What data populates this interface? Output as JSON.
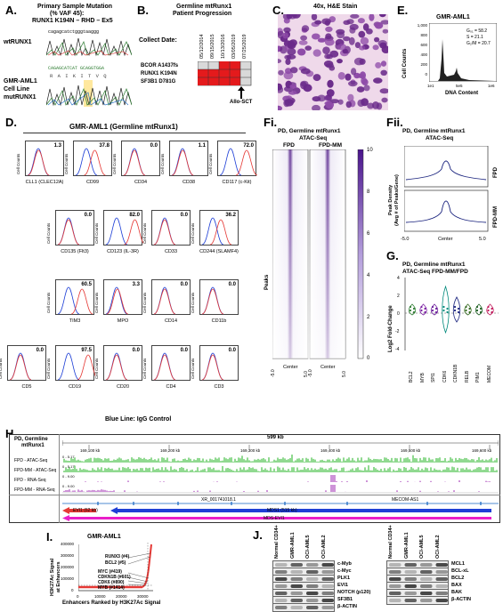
{
  "panelA": {
    "letter": "A.",
    "title1": "Primary Sample Mutation",
    "title2": "(% VAF 45):",
    "title3": "RUNX1 K194N – RHD – Ex5",
    "wt_label": "wtRUNX1",
    "wt_seq": "cagagcatctgggtaaggg",
    "mut_label1": "GMR-AML1",
    "mut_label2": "Cell Line",
    "mut_label3": "mutRUNX1",
    "mut_seq": "CAGAGCATCAT GCAGGTGGA",
    "aa_seq": "R  A  I  K  I  T  V  Q"
  },
  "panelB": {
    "letter": "B.",
    "title1": "Germline mtRunx1",
    "title2": "Patient Progression",
    "collect_label": "Collect Date:",
    "dates": [
      "05/12/2014",
      "09/15/2015",
      "10/13/2016",
      "03/05/2019",
      "07/25/2019"
    ],
    "rows": [
      "BCOR A1437fs",
      "RUNX1 K194N",
      "SF3B1 D781G"
    ],
    "allo_label": "Allo-SCT"
  },
  "panelC": {
    "letter": "C.",
    "title": "40x, H&E Stain"
  },
  "panelE": {
    "letter": "E.",
    "title": "GMR-AML1",
    "ylabel": "Cell Counts",
    "xlabel": "DNA Content",
    "stats": [
      "G₀₁ = 58.2",
      "S = 21.1",
      "G₂/M = 20.7"
    ],
    "yticks": [
      "1,000",
      "800",
      "600",
      "400",
      "200",
      "0"
    ],
    "xticks": [
      "1e1",
      "5e5",
      "1e6"
    ]
  },
  "panelD": {
    "letter": "D.",
    "title": "GMR-AML1 (Germline mtRunx1)",
    "footer": "Blue Line: IgG Control",
    "ylabel": "Cell Counts",
    "markers": [
      {
        "name": "CLL1 (CLEC12A)",
        "value": "1.3"
      },
      {
        "name": "CD99",
        "value": "37.8"
      },
      {
        "name": "CD34",
        "value": "0.0"
      },
      {
        "name": "CD38",
        "value": "1.1"
      },
      {
        "name": "CD117 (c-Kit)",
        "value": "72.0"
      },
      {
        "name": "CD135 (Flt3)",
        "value": "0.0"
      },
      {
        "name": "CD123 (IL-3R)",
        "value": "82.0"
      },
      {
        "name": "CD33",
        "value": "0.0"
      },
      {
        "name": "CD244 (SLAMF4)",
        "value": "36.2"
      },
      {
        "name": "TIM3",
        "value": "60.5"
      },
      {
        "name": "MPO",
        "value": "3.3"
      },
      {
        "name": "CD14",
        "value": "0.0"
      },
      {
        "name": "CD11b",
        "value": "0.0"
      },
      {
        "name": "CD5",
        "value": "0.0"
      },
      {
        "name": "CD19",
        "value": "97.5"
      },
      {
        "name": "CD20",
        "value": "0.0"
      },
      {
        "name": "CD4",
        "value": "0.0"
      },
      {
        "name": "CD3",
        "value": "0.0"
      }
    ]
  },
  "panelFi": {
    "letter": "Fi.",
    "title1": "PD, Germline mtRunx1",
    "title2": "ATAC-Seq",
    "col1": "FPD",
    "col2": "FPD-MM",
    "ylabel": "Peaks",
    "xlabel": "Center",
    "xticks": [
      "-5.0",
      "5.0"
    ],
    "scale": [
      "10",
      "8",
      "6",
      "4",
      "2",
      "0"
    ]
  },
  "panelFii": {
    "letter": "Fii.",
    "title1": "PD, Germline mtRunx1",
    "title2": "ATAC-Seq",
    "ylabel1": "Peak Density",
    "ylabel2": "(Avg # of Peaks/Gene)",
    "row1": "FPD",
    "row2": "FPD-MM",
    "xlabel": "Center",
    "xticks": [
      "-5.0",
      "5.0"
    ]
  },
  "panelG": {
    "letter": "G.",
    "title1": "PD, Germline mtRunx1",
    "title2": "ATAC-Seq FPD-MM/FPD",
    "ylabel": "Log2 Fold-Change",
    "yticks": [
      "4",
      "2",
      "0",
      "-2",
      "-4"
    ],
    "genes": [
      "BCL2",
      "MYB",
      "SPI1",
      "CDK6",
      "CDKN1B",
      "RELB",
      "PIM1",
      "MECOM"
    ],
    "colors": [
      "#2e7d32",
      "#7b1fa2",
      "#6a1b9a",
      "#00897b",
      "#1a237e",
      "#33691e",
      "#1b5e20",
      "#c2185b"
    ]
  },
  "panelH": {
    "letter": "H.",
    "title1": "PD, Germline",
    "title2": "mtRunx1",
    "scale": "599 kb",
    "coords": [
      "169,100 kb",
      "169,200 kb",
      "169,300 kb",
      "169,400 kb",
      "169,500 kb",
      "169,600 kb"
    ],
    "tracks": [
      {
        "name": "FPD - ATAC-Seq",
        "range": "0 - 5.17"
      },
      {
        "name": "FPD-MM - ATAC-Seq",
        "range": "0 - 5.17"
      },
      {
        "name": "FPD - RNA-Seq",
        "range": "0 - 9.00"
      },
      {
        "name": "FPD-MM - RNA-Seq",
        "range": "0 - 9.00"
      }
    ],
    "genes": [
      "XR_001741018.1",
      "MECOM-AS1",
      "EVI1 (62 kb)",
      "MDS1 (515 kb)",
      "MDS-EVI1"
    ]
  },
  "panelI": {
    "letter": "I.",
    "title": "GMR-AML1",
    "ylabel1": "H3K27Ac Signal",
    "ylabel2": "at Enhancers",
    "xlabel": "Enhancers Ranked by H3K27Ac Signal",
    "yticks": [
      "400000",
      "300000",
      "200000",
      "100000",
      "0"
    ],
    "xticks": [
      "0",
      "10000",
      "20000",
      "30000"
    ],
    "labels": [
      "RUNX3 (#4)",
      "BCL2 (#5)",
      "MYC (#419)",
      "CDKN1B (#601)",
      "CDK6 (#890)",
      "MYB (#1414)"
    ]
  },
  "panelJ": {
    "letter": "J.",
    "columns": [
      "Normal CD34+",
      "GMR-AML1",
      "OCI-AML5",
      "OCI-AML2"
    ],
    "left_proteins": [
      "c-Myb",
      "c-Myc",
      "PLK1",
      "EVI1",
      "NOTCH (p120)",
      "SF3B1",
      "β-ACTIN"
    ],
    "right_proteins": [
      "MCL1",
      "BCL-xL",
      "BCL2",
      "BAX",
      "BAK",
      "β-ACTIN"
    ]
  }
}
